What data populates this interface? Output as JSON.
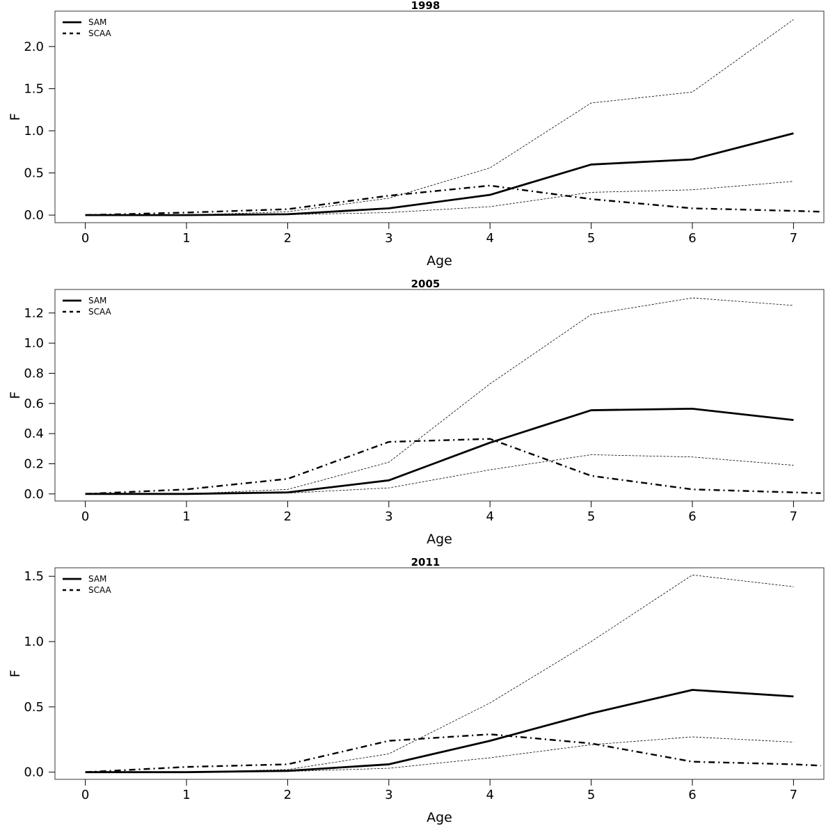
{
  "chart_data": [
    {
      "type": "line",
      "title": "1998",
      "xlabel": "Age",
      "ylabel": "F",
      "x": [
        0,
        1,
        2,
        3,
        4,
        5,
        6,
        7
      ],
      "xticks": [
        "0",
        "1",
        "2",
        "3",
        "4",
        "5",
        "6",
        "7"
      ],
      "xlim": [
        -0.3,
        7.3
      ],
      "yticks": [
        0.0,
        0.5,
        1.0,
        1.5,
        2.0
      ],
      "ytick_labels": [
        "0.0",
        "0.5",
        "1.0",
        "1.5",
        "2.0"
      ],
      "ylim": [
        -0.09,
        2.42
      ],
      "grid": false,
      "legend": {
        "position": "top-left",
        "entries": [
          "SAM",
          "SCAA"
        ]
      },
      "series": [
        {
          "name": "SAM",
          "style": "solid",
          "x": [
            0,
            1,
            2,
            3,
            4,
            5,
            6,
            7
          ],
          "values": [
            0.0,
            0.0,
            0.01,
            0.08,
            0.24,
            0.6,
            0.66,
            0.97
          ]
        },
        {
          "name": "SCAA",
          "style": "dashdot",
          "x": [
            0,
            1,
            2,
            3,
            4,
            5,
            6,
            7,
            7.27
          ],
          "values": [
            0.0,
            0.03,
            0.07,
            0.23,
            0.35,
            0.19,
            0.08,
            0.05,
            0.04
          ]
        },
        {
          "style": "dotted-upper",
          "x": [
            0,
            1,
            2,
            3,
            4,
            5,
            6,
            7
          ],
          "values": [
            0.0,
            0.0,
            0.04,
            0.2,
            0.56,
            1.33,
            1.46,
            2.32
          ]
        },
        {
          "style": "dotted-lower",
          "x": [
            0,
            1,
            2,
            3,
            4,
            5,
            6,
            7
          ],
          "values": [
            0.0,
            0.0,
            0.005,
            0.03,
            0.1,
            0.27,
            0.3,
            0.4
          ]
        }
      ]
    },
    {
      "type": "line",
      "title": "2005",
      "xlabel": "Age",
      "ylabel": "F",
      "x": [
        0,
        1,
        2,
        3,
        4,
        5,
        6,
        7
      ],
      "xticks": [
        "0",
        "1",
        "2",
        "3",
        "4",
        "5",
        "6",
        "7"
      ],
      "xlim": [
        -0.3,
        7.3
      ],
      "yticks": [
        0.0,
        0.2,
        0.4,
        0.6,
        0.8,
        1.0,
        1.2
      ],
      "ytick_labels": [
        "0.0",
        "0.2",
        "0.4",
        "0.6",
        "0.8",
        "1.0",
        "1.2"
      ],
      "ylim": [
        -0.047,
        1.356
      ],
      "grid": false,
      "legend": {
        "position": "top-left",
        "entries": [
          "SAM",
          "SCAA"
        ]
      },
      "series": [
        {
          "name": "SAM",
          "style": "solid",
          "x": [
            0,
            1,
            2,
            3,
            4,
            5,
            6,
            7
          ],
          "values": [
            0.0,
            0.0,
            0.01,
            0.09,
            0.34,
            0.555,
            0.565,
            0.49
          ]
        },
        {
          "name": "SCAA",
          "style": "dashdot",
          "x": [
            0,
            1,
            2,
            3,
            4,
            5,
            6,
            7,
            7.27
          ],
          "values": [
            0.0,
            0.03,
            0.1,
            0.345,
            0.365,
            0.12,
            0.03,
            0.01,
            0.005
          ]
        },
        {
          "style": "dotted-upper",
          "x": [
            0,
            1,
            2,
            3,
            4,
            5,
            6,
            7
          ],
          "values": [
            0.0,
            0.0,
            0.03,
            0.21,
            0.73,
            1.19,
            1.3,
            1.25
          ]
        },
        {
          "style": "dotted-lower",
          "x": [
            0,
            1,
            2,
            3,
            4,
            5,
            6,
            7
          ],
          "values": [
            0.0,
            0.0,
            0.005,
            0.04,
            0.16,
            0.26,
            0.245,
            0.19
          ]
        }
      ]
    },
    {
      "type": "line",
      "title": "2011",
      "xlabel": "Age",
      "ylabel": "F",
      "x": [
        0,
        1,
        2,
        3,
        4,
        5,
        6,
        7
      ],
      "xticks": [
        "0",
        "1",
        "2",
        "3",
        "4",
        "5",
        "6",
        "7"
      ],
      "xlim": [
        -0.3,
        7.3
      ],
      "yticks": [
        0.0,
        0.5,
        1.0,
        1.5
      ],
      "ytick_labels": [
        "0.0",
        "0.5",
        "1.0",
        "1.5"
      ],
      "ylim": [
        -0.055,
        1.565
      ],
      "grid": false,
      "legend": {
        "position": "top-left",
        "entries": [
          "SAM",
          "SCAA"
        ]
      },
      "series": [
        {
          "name": "SAM",
          "style": "solid",
          "x": [
            0,
            1,
            2,
            3,
            4,
            5,
            6,
            7
          ],
          "values": [
            0.0,
            0.0,
            0.01,
            0.06,
            0.24,
            0.45,
            0.63,
            0.58
          ]
        },
        {
          "name": "SCAA",
          "style": "dashdot",
          "x": [
            0,
            1,
            2,
            3,
            4,
            5,
            6,
            7,
            7.27
          ],
          "values": [
            0.0,
            0.04,
            0.06,
            0.24,
            0.29,
            0.22,
            0.08,
            0.06,
            0.05
          ]
        },
        {
          "style": "dotted-upper",
          "x": [
            0,
            1,
            2,
            3,
            4,
            5,
            6,
            7
          ],
          "values": [
            0.0,
            0.0,
            0.02,
            0.14,
            0.53,
            1.0,
            1.51,
            1.42
          ]
        },
        {
          "style": "dotted-lower",
          "x": [
            0,
            1,
            2,
            3,
            4,
            5,
            6,
            7
          ],
          "values": [
            0.0,
            0.0,
            0.005,
            0.03,
            0.11,
            0.21,
            0.27,
            0.23
          ]
        }
      ]
    }
  ]
}
